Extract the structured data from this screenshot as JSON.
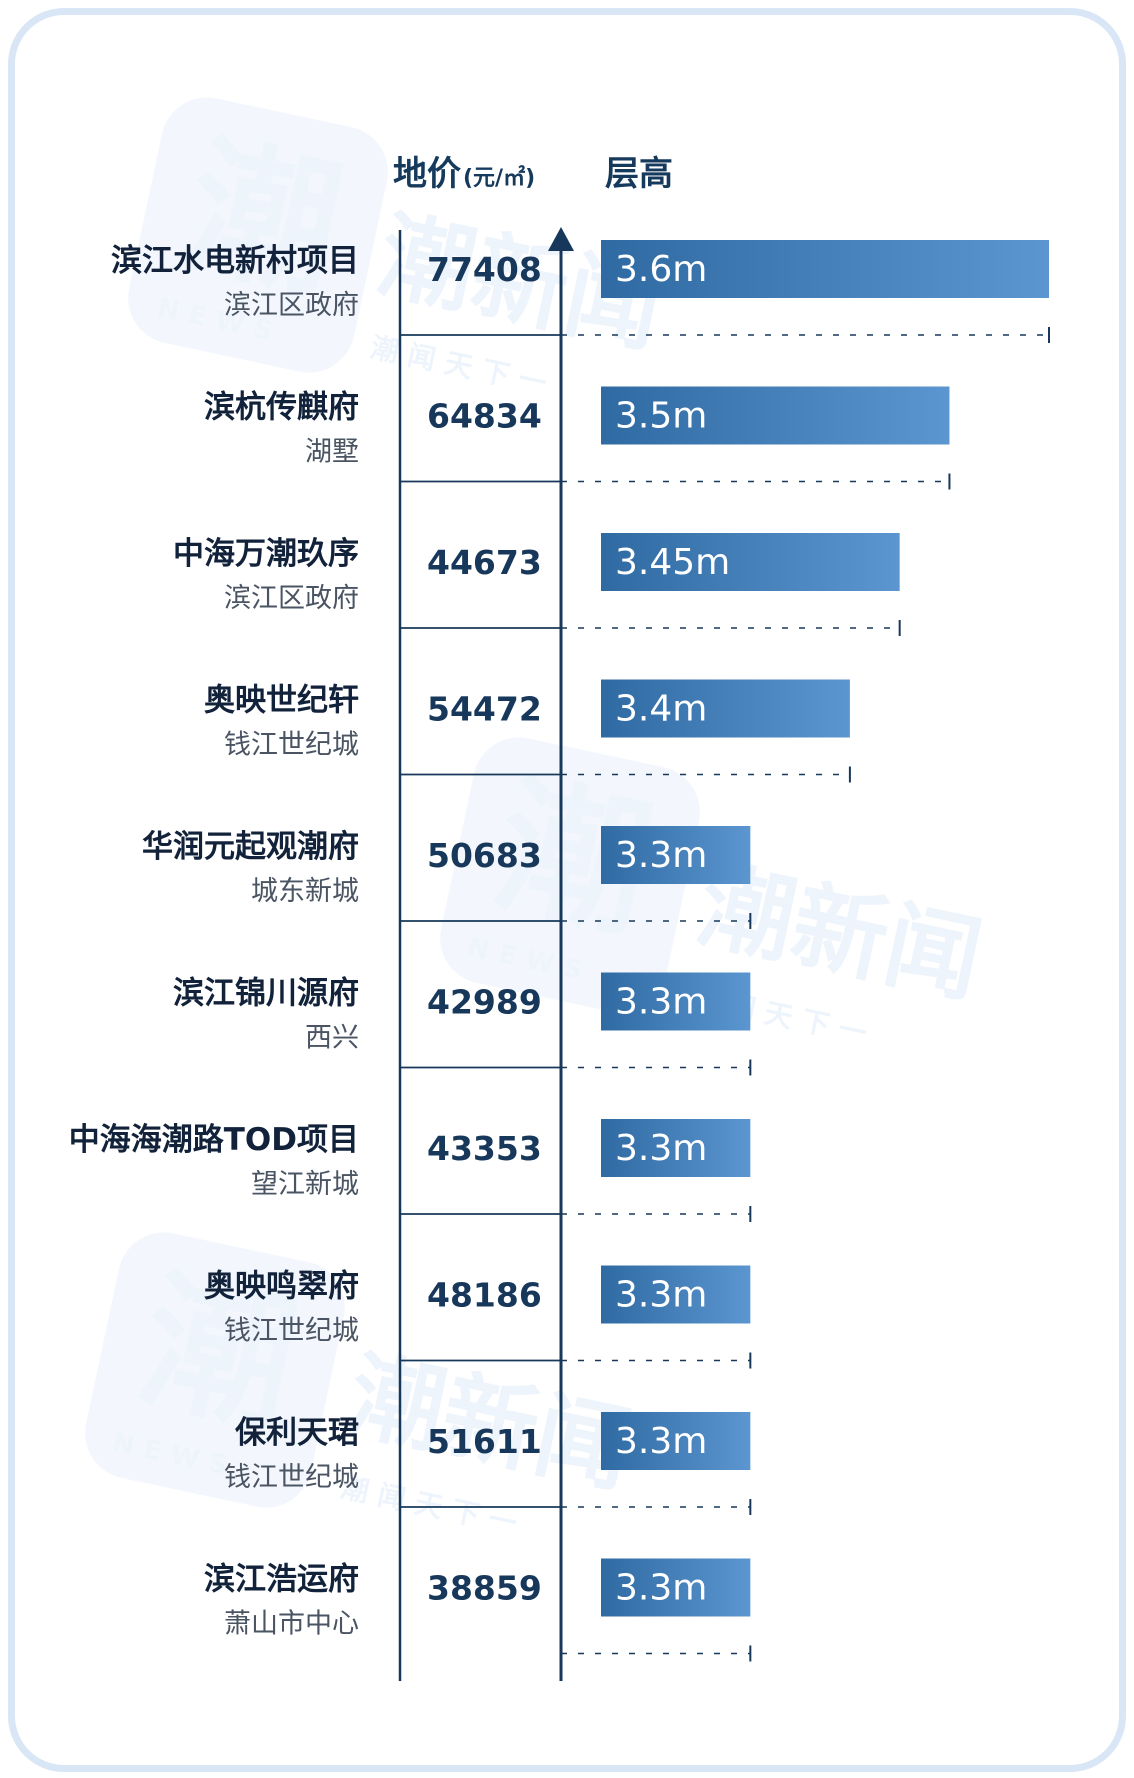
{
  "header": {
    "price_title": "地价",
    "price_unit": "(元/㎡)",
    "height_title": "层高"
  },
  "watermark": {
    "main": "潮新闻",
    "sub": "潮 闻 天 下 一",
    "logo_glyph": "潮",
    "logo_text": "NEWS"
  },
  "colors": {
    "bar_dark": "#2f6aa3",
    "bar_light": "#5c96d0",
    "axis": "#17385a",
    "text": "#12223a"
  },
  "chart_data": {
    "type": "bar",
    "orientation": "horizontal",
    "unit": "m",
    "xlim": [
      3.15,
      3.6
    ],
    "categories": [
      "滨江水电新村项目",
      "滨杭传麒府",
      "中海万潮玖序",
      "奥映世纪轩",
      "华润元起观潮府",
      "滨江锦川源府",
      "中海海潮路TOD项目",
      "奥映鸣翠府",
      "保利天珺",
      "滨江浩运府"
    ],
    "districts": [
      "滨江区政府",
      "湖墅",
      "滨江区政府",
      "钱江世纪城",
      "城东新城",
      "西兴",
      "望江新城",
      "钱江世纪城",
      "钱江世纪城",
      "萧山市中心"
    ],
    "land_price": [
      "77408",
      "64834",
      "44673",
      "54472",
      "50683",
      "42989",
      "43353",
      "48186",
      "51611",
      "38859"
    ],
    "values": [
      3.6,
      3.5,
      3.45,
      3.4,
      3.3,
      3.3,
      3.3,
      3.3,
      3.3,
      3.3
    ],
    "value_labels": [
      "3.6m",
      "3.5m",
      "3.45m",
      "3.4m",
      "3.3m",
      "3.3m",
      "3.3m",
      "3.3m",
      "3.3m",
      "3.3m"
    ]
  }
}
